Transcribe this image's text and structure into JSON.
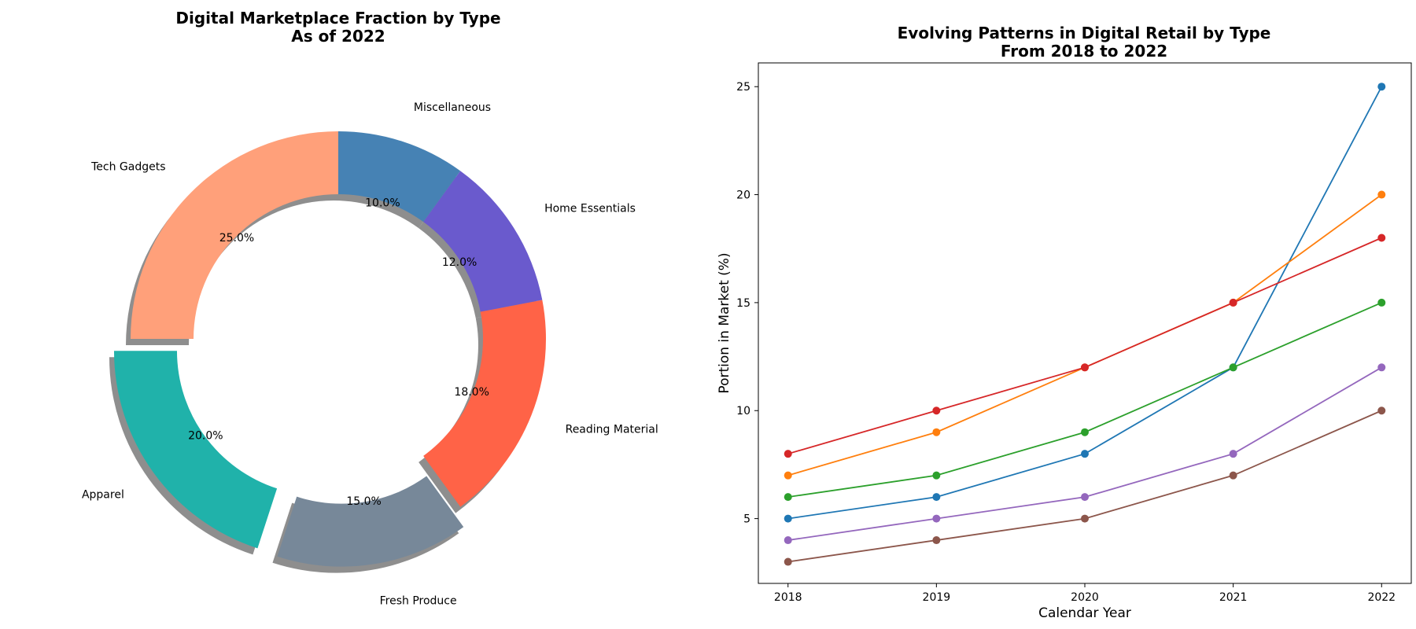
{
  "chart_data": [
    {
      "type": "pie",
      "variant": "donut",
      "title": "Digital Marketplace Fraction by Type",
      "subtitle": "As of 2022",
      "categories": [
        "Tech Gadgets",
        "Apparel",
        "Fresh Produce",
        "Reading Material",
        "Home Essentials",
        "Miscellaneous"
      ],
      "values": [
        25,
        20,
        15,
        18,
        12,
        10
      ],
      "percent_labels": [
        "25.0%",
        "20.0%",
        "15.0%",
        "18.0%",
        "12.0%",
        "10.0%"
      ],
      "colors": [
        "#FFA07A",
        "#20B2AA",
        "#778899",
        "#FF6347",
        "#6A5ACD",
        "#4682B4"
      ],
      "exploded": [
        "Apparel",
        "Fresh Produce"
      ],
      "shadow": true
    },
    {
      "type": "line",
      "title": "Evolving Patterns in Digital Retail by Type",
      "subtitle": "From 2018 to 2022",
      "xlabel": "Calendar Year",
      "ylabel": "Portion in Market (%)",
      "x": [
        2018,
        2019,
        2020,
        2021,
        2022
      ],
      "x_tick_labels": [
        "2018",
        "2019",
        "2020",
        "2021",
        "2022"
      ],
      "y_ticks": [
        5,
        10,
        15,
        20,
        25
      ],
      "ylim": [
        2,
        26.1
      ],
      "grid": false,
      "marker": "circle",
      "series": [
        {
          "values": [
            5,
            6,
            8,
            12,
            25
          ],
          "color": "#1f77b4"
        },
        {
          "values": [
            7,
            9,
            12,
            15,
            20
          ],
          "color": "#ff7f0e"
        },
        {
          "values": [
            6,
            7,
            9,
            12,
            15
          ],
          "color": "#2ca02c"
        },
        {
          "values": [
            8,
            10,
            12,
            15,
            18
          ],
          "color": "#d62728"
        },
        {
          "values": [
            4,
            5,
            6,
            8,
            12
          ],
          "color": "#9467bd"
        },
        {
          "values": [
            3,
            4,
            5,
            7,
            10
          ],
          "color": "#8c564b"
        }
      ]
    }
  ]
}
